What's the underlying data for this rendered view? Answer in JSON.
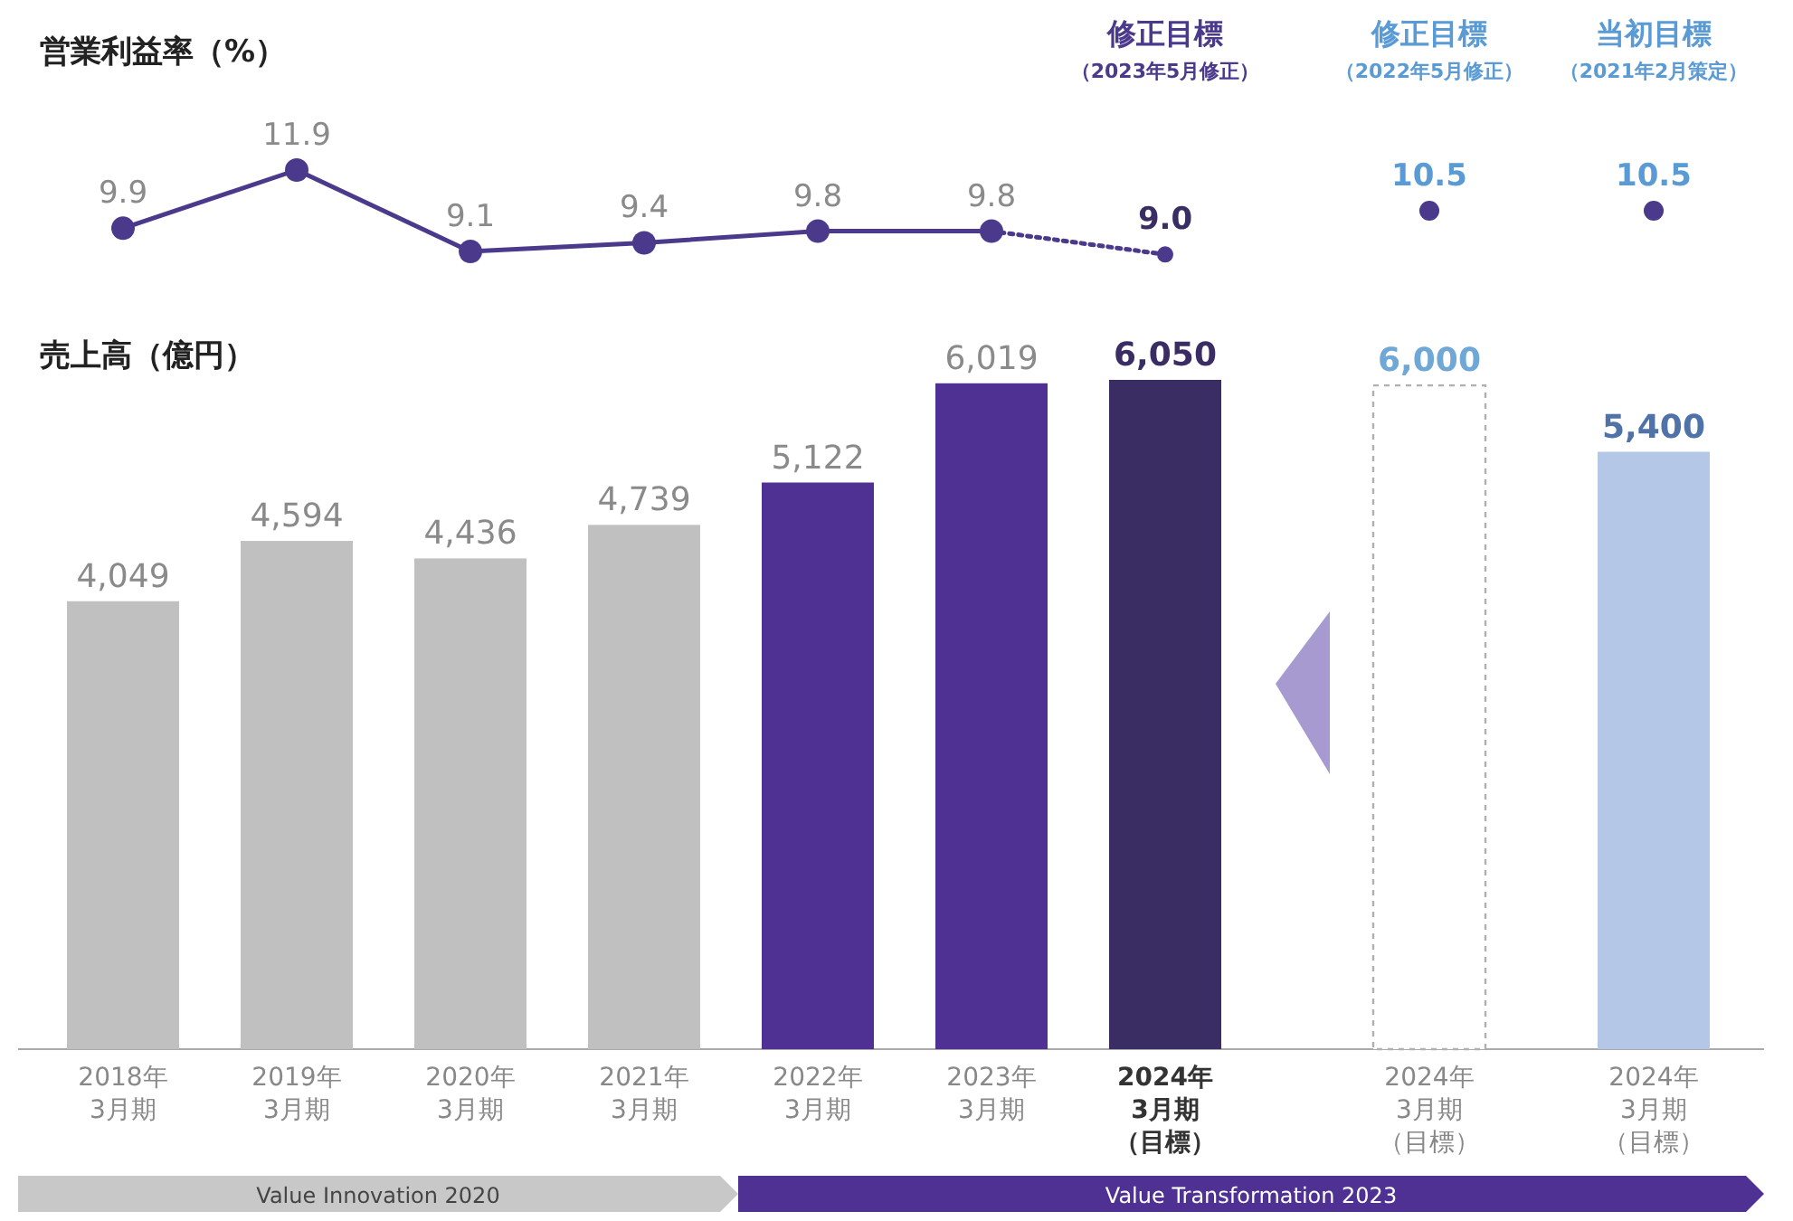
{
  "chart_data": [
    {
      "type": "line",
      "title": "営業利益率（%）",
      "categories": [
        null,
        null,
        null,
        null,
        null,
        null,
        null
      ],
      "tick_labels": false,
      "marker": "circle",
      "series": [
        {
          "color": "#4b3a8c",
          "values": [
            9.9,
            11.9,
            9.1,
            9.4,
            9.8,
            9.8,
            null
          ],
          "value_labels": [
            "9.9",
            "11.9",
            "9.1",
            "9.4",
            "9.8",
            "9.8",
            null
          ]
        },
        {
          "name": "修正目標（2023年5月修正）",
          "color": "#4b3a8c",
          "line_style": "dotted",
          "values": [
            null,
            null,
            null,
            null,
            null,
            9.8,
            9.0
          ],
          "value_labels": [
            null,
            null,
            null,
            null,
            null,
            null,
            "9.0"
          ]
        }
      ]
    },
    {
      "type": "other",
      "title": "修正目標",
      "subtitle": "（2022年5月修正）",
      "values": [
        10.5
      ],
      "value_labels": [
        "10.5"
      ],
      "color": "#4b3a8c"
    },
    {
      "type": "other",
      "title": "当初目標",
      "subtitle": "（2021年2月策定）",
      "values": [
        10.5
      ],
      "value_labels": [
        "10.5"
      ],
      "color": "#4b3a8c"
    },
    {
      "type": "bar",
      "title": "売上高（億円）",
      "categories": [
        "2018年3月期",
        "2019年3月期",
        "2020年3月期",
        "2021年3月期",
        "2022年3月期",
        "2023年3月期",
        "2024年3月期（目標）",
        "2024年3月期（目標）",
        "2024年3月期（目標）"
      ],
      "values": [
        4049,
        4594,
        4436,
        4739,
        5122,
        6019,
        6050,
        6000,
        5400
      ],
      "value_labels": [
        "4,049",
        "4,594",
        "4,436",
        "4,739",
        "5,122",
        "6,019",
        "6,050",
        "6,000",
        "5,400"
      ],
      "colors": [
        "#c0c0c0",
        "#c0c0c0",
        "#c0c0c0",
        "#c0c0c0",
        "#4e3192",
        "#4e3192",
        "#3a2d63",
        "#ffffff",
        "#b4c7e7"
      ],
      "annotations": [
        "Value Innovation 2020",
        "Value Transformation 2023"
      ]
    }
  ]
}
